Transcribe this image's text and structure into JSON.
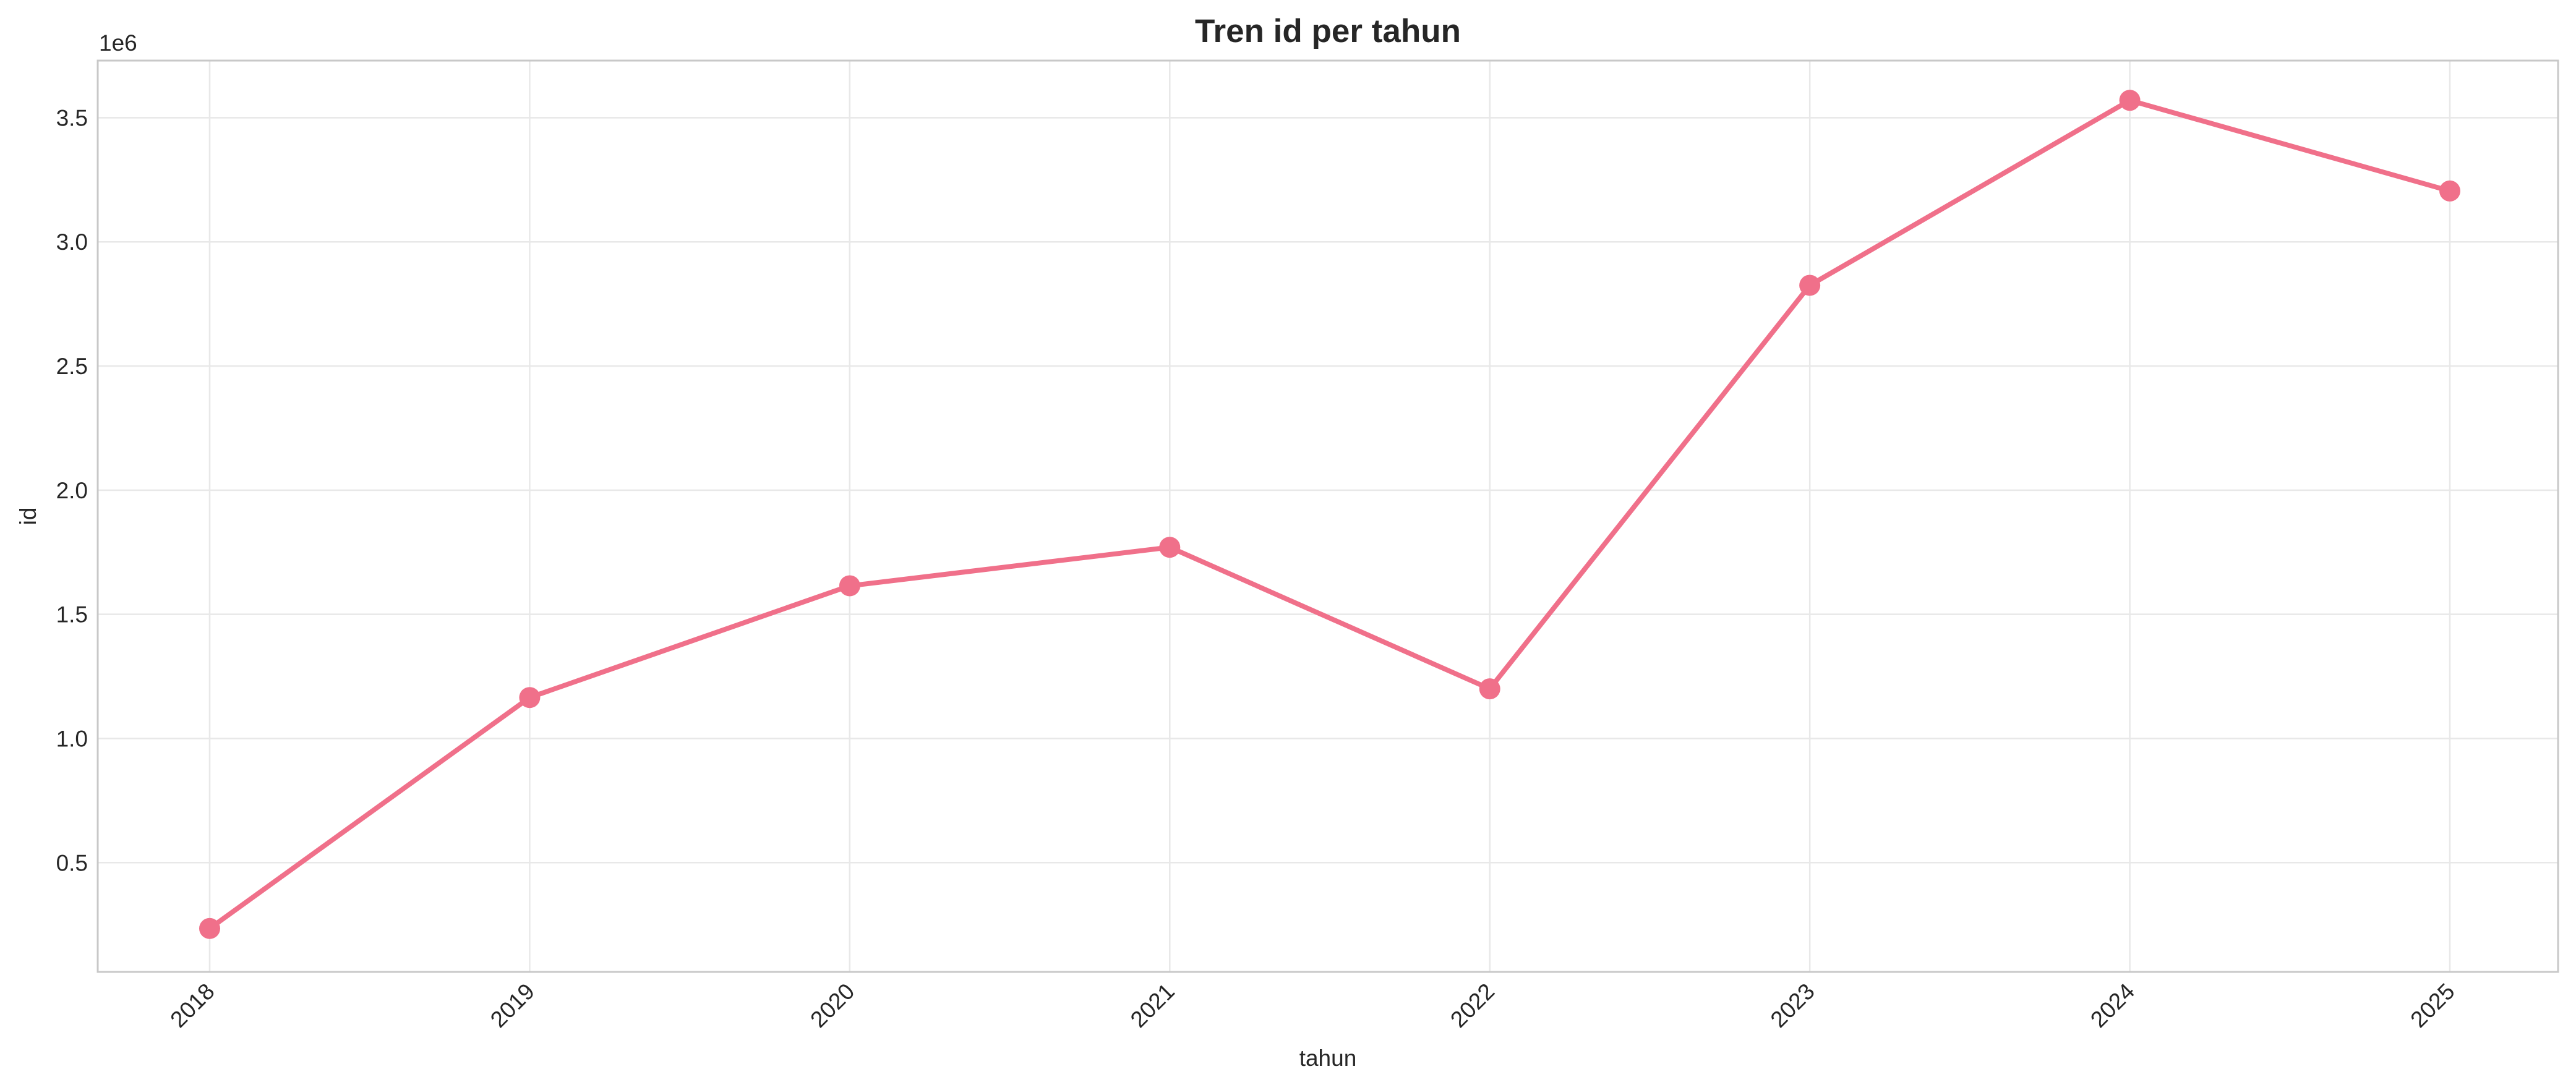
{
  "colors": {
    "series": "#f0708a",
    "text": "#262626",
    "grid": "#e8e8e8",
    "frame": "#c8c8c8",
    "background": "#ffffff"
  },
  "chart_data": {
    "type": "line",
    "title": "Tren id per tahun",
    "xlabel": "tahun",
    "ylabel": "id",
    "y_offset_label": "1e6",
    "y_scale_multiplier": 1000000,
    "categories": [
      "2018",
      "2019",
      "2020",
      "2021",
      "2022",
      "2023",
      "2024",
      "2025"
    ],
    "series": [
      {
        "values": [
          235000,
          1165000,
          1615000,
          1770000,
          1200000,
          2825000,
          3570000,
          3205000
        ],
        "marker": "circle"
      }
    ],
    "ylim": [
      60000,
      3730000
    ],
    "yticks": [
      500000,
      1000000,
      1500000,
      2000000,
      2500000,
      3000000,
      3500000
    ],
    "ytick_labels": [
      "0.5",
      "1.0",
      "1.5",
      "2.0",
      "2.5",
      "3.0",
      "3.5"
    ],
    "x_tick_rotation": 45,
    "grid": true,
    "legend": "none"
  }
}
